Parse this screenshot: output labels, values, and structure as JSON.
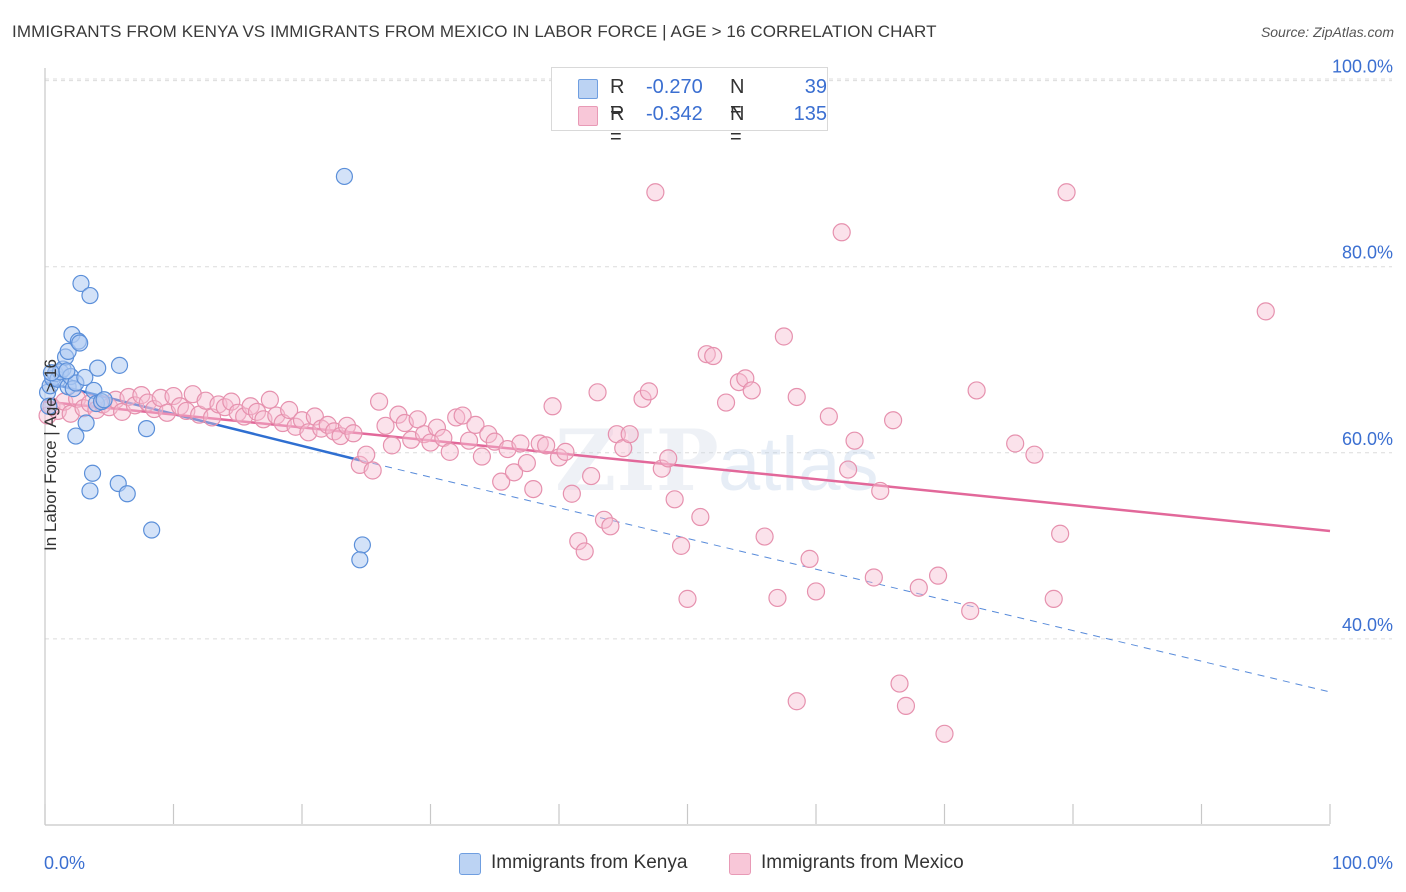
{
  "header": {
    "title": "IMMIGRANTS FROM KENYA VS IMMIGRANTS FROM MEXICO IN LABOR FORCE | AGE > 16 CORRELATION CHART",
    "source": "Source: ZipAtlas.com"
  },
  "legend": {
    "kenya": {
      "r_label": "R =",
      "r_value": "-0.270",
      "n_label": "N =",
      "n_value": "39"
    },
    "mexico": {
      "r_label": "R =",
      "r_value": "-0.342",
      "n_label": "N =",
      "n_value": "135"
    }
  },
  "bottom_legend": {
    "kenya": "Immigrants from Kenya",
    "mexico": "Immigrants from Mexico"
  },
  "colors": {
    "kenya_fill": "#aecbf2",
    "kenya_stroke": "#5b8fd9",
    "kenya_line": "#2f6fd1",
    "mexico_fill": "#f7bfd2",
    "mexico_stroke": "#e691ae",
    "mexico_line": "#e2689a",
    "tick_label": "#3b6fd1",
    "grid": "#dcdcdc"
  },
  "chart_data": {
    "type": "scatter",
    "title": "IMMIGRANTS FROM KENYA VS IMMIGRANTS FROM MEXICO IN LABOR FORCE | AGE > 16 CORRELATION CHART",
    "xlabel": "",
    "ylabel": "In Labor Force | Age > 16",
    "xlim": [
      0,
      100
    ],
    "ylim": [
      20,
      102
    ],
    "x_tick_labels": [
      "0.0%",
      "100.0%"
    ],
    "y_ticks": [
      {
        "value": 40,
        "label": "40.0%"
      },
      {
        "value": 60,
        "label": "60.0%"
      },
      {
        "value": 80,
        "label": "80.0%"
      },
      {
        "value": 100,
        "label": "100.0%"
      }
    ],
    "grid": true,
    "legend_position": "top-center",
    "watermark": "ZIPatlas",
    "series": [
      {
        "name": "Immigrants from Kenya",
        "r": -0.27,
        "n": 39,
        "trend": {
          "x0": 0,
          "y0": 67.6,
          "x1": 24.5,
          "y1": 59.2,
          "dashed_to_x": 100,
          "dashed_to_y": 34.3
        },
        "points": [
          [
            0.2,
            66.5
          ],
          [
            0.4,
            67.2
          ],
          [
            0.6,
            68.0
          ],
          [
            0.8,
            68.5
          ],
          [
            1.0,
            67.9
          ],
          [
            1.2,
            68.7
          ],
          [
            1.4,
            69.0
          ],
          [
            1.6,
            70.3
          ],
          [
            1.8,
            67.1
          ],
          [
            2.0,
            68.2
          ],
          [
            2.2,
            66.9
          ],
          [
            2.4,
            67.5
          ],
          [
            0.3,
            65.0
          ],
          [
            0.5,
            68.6
          ],
          [
            1.7,
            68.8
          ],
          [
            1.8,
            70.9
          ],
          [
            2.1,
            72.7
          ],
          [
            2.6,
            72.0
          ],
          [
            2.7,
            71.8
          ],
          [
            2.8,
            78.2
          ],
          [
            3.5,
            76.9
          ],
          [
            3.1,
            68.1
          ],
          [
            3.8,
            66.7
          ],
          [
            4.1,
            69.1
          ],
          [
            4.0,
            65.3
          ],
          [
            4.4,
            65.5
          ],
          [
            4.6,
            65.7
          ],
          [
            3.2,
            63.2
          ],
          [
            2.4,
            61.8
          ],
          [
            5.8,
            69.4
          ],
          [
            7.9,
            62.6
          ],
          [
            3.7,
            57.8
          ],
          [
            3.5,
            55.9
          ],
          [
            5.7,
            56.7
          ],
          [
            6.4,
            55.6
          ],
          [
            8.3,
            51.7
          ],
          [
            23.3,
            89.7
          ],
          [
            24.7,
            50.1
          ],
          [
            24.5,
            48.5
          ]
        ]
      },
      {
        "name": "Immigrants from Mexico",
        "r": -0.342,
        "n": 135,
        "trend": {
          "x0": 0,
          "y0": 65.5,
          "x1": 100,
          "y1": 51.6
        },
        "points": [
          [
            0.2,
            64.0
          ],
          [
            0.5,
            65.0
          ],
          [
            1.0,
            64.5
          ],
          [
            1.5,
            65.5
          ],
          [
            2.0,
            64.2
          ],
          [
            2.5,
            65.8
          ],
          [
            3.0,
            64.8
          ],
          [
            3.5,
            65.3
          ],
          [
            4.0,
            64.6
          ],
          [
            4.5,
            65.2
          ],
          [
            5.0,
            64.9
          ],
          [
            5.5,
            65.7
          ],
          [
            6.0,
            64.4
          ],
          [
            6.5,
            66.0
          ],
          [
            7.0,
            65.1
          ],
          [
            7.5,
            66.2
          ],
          [
            8.0,
            65.4
          ],
          [
            8.5,
            64.7
          ],
          [
            9.0,
            65.9
          ],
          [
            9.5,
            64.3
          ],
          [
            10.0,
            66.1
          ],
          [
            10.5,
            65.0
          ],
          [
            11.0,
            64.5
          ],
          [
            11.5,
            66.3
          ],
          [
            12.0,
            64.1
          ],
          [
            12.5,
            65.6
          ],
          [
            13.0,
            63.8
          ],
          [
            13.5,
            65.2
          ],
          [
            14.0,
            64.9
          ],
          [
            14.5,
            65.5
          ],
          [
            15.0,
            64.3
          ],
          [
            15.5,
            63.9
          ],
          [
            16.0,
            65.0
          ],
          [
            16.5,
            64.4
          ],
          [
            17.0,
            63.6
          ],
          [
            17.5,
            65.7
          ],
          [
            18.0,
            64.0
          ],
          [
            18.5,
            63.2
          ],
          [
            19.0,
            64.6
          ],
          [
            19.5,
            62.8
          ],
          [
            20.0,
            63.5
          ],
          [
            20.5,
            62.2
          ],
          [
            21.0,
            63.9
          ],
          [
            21.5,
            62.6
          ],
          [
            22.0,
            63.0
          ],
          [
            22.5,
            62.3
          ],
          [
            23.0,
            61.8
          ],
          [
            23.5,
            62.9
          ],
          [
            24.0,
            62.1
          ],
          [
            24.5,
            58.7
          ],
          [
            25.0,
            59.8
          ],
          [
            25.5,
            58.1
          ],
          [
            26.0,
            65.5
          ],
          [
            26.5,
            62.9
          ],
          [
            27.0,
            60.8
          ],
          [
            27.5,
            64.1
          ],
          [
            28.0,
            63.2
          ],
          [
            28.5,
            61.4
          ],
          [
            29.0,
            63.6
          ],
          [
            29.5,
            62.0
          ],
          [
            30.0,
            61.1
          ],
          [
            30.5,
            62.7
          ],
          [
            31.0,
            61.6
          ],
          [
            31.5,
            60.1
          ],
          [
            32.0,
            63.8
          ],
          [
            32.5,
            64.0
          ],
          [
            33.0,
            61.3
          ],
          [
            33.5,
            63.0
          ],
          [
            34.0,
            59.6
          ],
          [
            34.5,
            62.0
          ],
          [
            35.0,
            61.2
          ],
          [
            35.5,
            56.9
          ],
          [
            36.0,
            60.4
          ],
          [
            36.5,
            57.9
          ],
          [
            37.0,
            61.0
          ],
          [
            37.5,
            58.9
          ],
          [
            38.0,
            56.1
          ],
          [
            38.5,
            61.0
          ],
          [
            39.0,
            60.8
          ],
          [
            39.5,
            65.0
          ],
          [
            40.0,
            59.5
          ],
          [
            40.5,
            60.1
          ],
          [
            41.0,
            55.6
          ],
          [
            41.5,
            50.5
          ],
          [
            42.0,
            49.4
          ],
          [
            42.5,
            57.5
          ],
          [
            43.0,
            66.5
          ],
          [
            43.5,
            52.8
          ],
          [
            44.0,
            52.1
          ],
          [
            44.5,
            62.0
          ],
          [
            45.0,
            60.5
          ],
          [
            45.5,
            62.0
          ],
          [
            46.5,
            65.8
          ],
          [
            47.0,
            66.6
          ],
          [
            47.5,
            88.0
          ],
          [
            48.0,
            58.3
          ],
          [
            48.5,
            59.4
          ],
          [
            49.0,
            55.0
          ],
          [
            49.5,
            50.0
          ],
          [
            50.0,
            44.3
          ],
          [
            51.0,
            53.1
          ],
          [
            51.5,
            70.6
          ],
          [
            52.0,
            70.4
          ],
          [
            53.0,
            65.4
          ],
          [
            54.0,
            67.6
          ],
          [
            54.5,
            68.0
          ],
          [
            55.0,
            66.7
          ],
          [
            56.0,
            51.0
          ],
          [
            57.0,
            44.4
          ],
          [
            57.5,
            72.5
          ],
          [
            58.5,
            66.0
          ],
          [
            59.5,
            48.6
          ],
          [
            60.0,
            45.1
          ],
          [
            61.0,
            63.9
          ],
          [
            62.0,
            83.7
          ],
          [
            62.5,
            58.2
          ],
          [
            63.0,
            61.3
          ],
          [
            64.5,
            46.6
          ],
          [
            65.0,
            55.9
          ],
          [
            66.0,
            63.5
          ],
          [
            66.5,
            35.2
          ],
          [
            67.0,
            32.8
          ],
          [
            68.0,
            45.5
          ],
          [
            69.5,
            46.8
          ],
          [
            70.0,
            29.8
          ],
          [
            72.0,
            43.0
          ],
          [
            72.5,
            66.7
          ],
          [
            75.5,
            61.0
          ],
          [
            77.0,
            59.8
          ],
          [
            58.5,
            33.3
          ],
          [
            78.5,
            44.3
          ],
          [
            79.0,
            51.3
          ],
          [
            79.5,
            88.0
          ],
          [
            95.0,
            75.2
          ]
        ]
      }
    ]
  }
}
